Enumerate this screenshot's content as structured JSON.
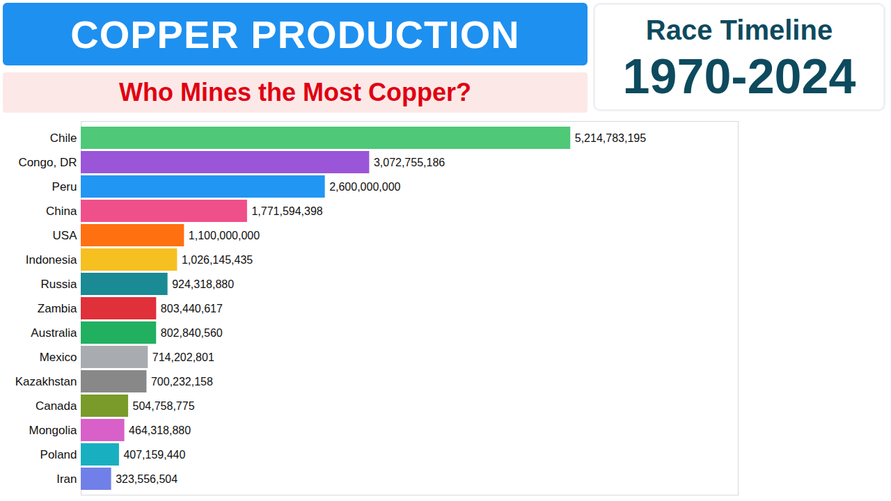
{
  "chart_data": {
    "type": "bar",
    "title": "COPPER PRODUCTION",
    "subtitle": "Who Mines the Most Copper?",
    "annotations": [
      "Race Timeline",
      "1970-2024"
    ],
    "orientation": "horizontal",
    "categories": [
      "Chile",
      "Congo, DR",
      "Peru",
      "China",
      "USA",
      "Indonesia",
      "Russia",
      "Zambia",
      "Australia",
      "Mexico",
      "Kazakhstan",
      "Canada",
      "Mongolia",
      "Poland",
      "Iran"
    ],
    "values": [
      5214783195,
      3072755186,
      2600000000,
      1771594398,
      1100000000,
      1026145435,
      924318880,
      803440617,
      802840560,
      714202801,
      700232158,
      504758775,
      464318880,
      407159440,
      323556504
    ],
    "value_labels": [
      "5,214,783,195",
      "3,072,755,186",
      "2,600,000,000",
      "1,771,594,398",
      "1,100,000,000",
      "1,026,145,435",
      "924,318,880",
      "803,440,617",
      "802,840,560",
      "714,202,801",
      "700,232,158",
      "504,758,775",
      "464,318,880",
      "407,159,440",
      "323,556,504"
    ],
    "colors": [
      "#4fc878",
      "#9b55d8",
      "#2196f3",
      "#f0508a",
      "#ff7010",
      "#f5c020",
      "#1a8a94",
      "#e0303a",
      "#20b060",
      "#a8abb0",
      "#888888",
      "#7a9a2a",
      "#d860c8",
      "#18b0c0",
      "#7080e8"
    ],
    "data_labels": true,
    "tick_labels": "y",
    "grid": false,
    "xlim": [
      0,
      7000000000
    ],
    "xticks": []
  }
}
